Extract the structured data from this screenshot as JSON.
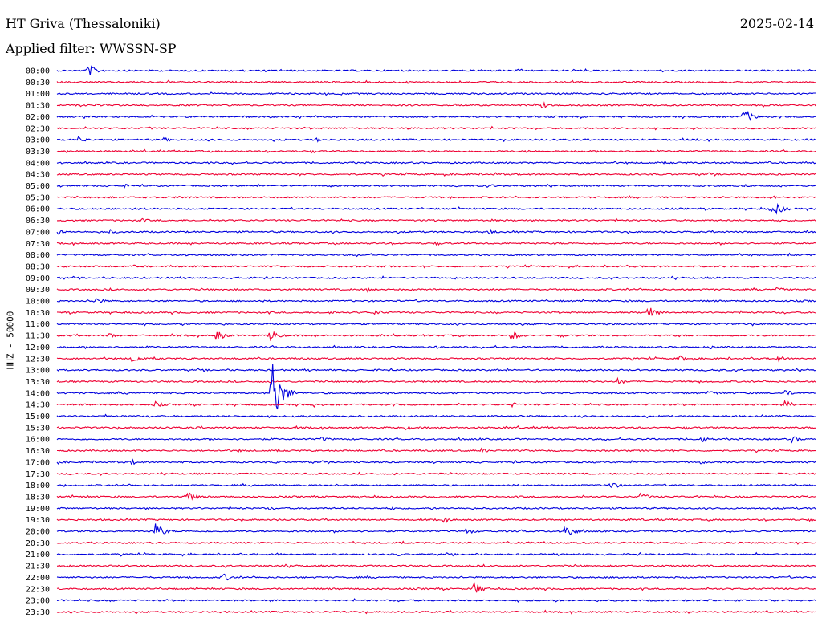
{
  "header": {
    "station": "HT Griva (Thessaloniki)",
    "date": "2025-02-14",
    "filter": "Applied filter: WWSSN-SP",
    "channel": "HHZ - 50000"
  },
  "colors": {
    "trace_a": "#0000dd",
    "trace_b": "#ee0033",
    "text": "#000000"
  },
  "chart_data": {
    "type": "helicorder",
    "title": "HT Griva (Thessaloniki)",
    "ylabel": "HHZ - 50000",
    "line_minutes": 30,
    "series": [
      {
        "time": "00:00",
        "events": [
          [
            0.04,
            9
          ]
        ]
      },
      {
        "time": "00:30",
        "events": []
      },
      {
        "time": "01:00",
        "events": []
      },
      {
        "time": "01:30",
        "events": [
          [
            0.64,
            4
          ]
        ]
      },
      {
        "time": "02:00",
        "events": [
          [
            0.905,
            10
          ]
        ]
      },
      {
        "time": "02:30",
        "events": [
          [
            0.12,
            2
          ]
        ]
      },
      {
        "time": "03:00",
        "events": [
          [
            0.03,
            4
          ],
          [
            0.14,
            3
          ],
          [
            0.34,
            3
          ]
        ]
      },
      {
        "time": "03:30",
        "events": [
          [
            0.62,
            2
          ]
        ]
      },
      {
        "time": "04:00",
        "events": [
          [
            0.2,
            1.5
          ]
        ]
      },
      {
        "time": "04:30",
        "events": [
          [
            0.58,
            2
          ],
          [
            0.86,
            2
          ]
        ]
      },
      {
        "time": "05:00",
        "events": [
          [
            0.09,
            2
          ],
          [
            0.57,
            2.5
          ]
        ]
      },
      {
        "time": "05:30",
        "events": [
          [
            0.16,
            2
          ],
          [
            0.94,
            3
          ]
        ]
      },
      {
        "time": "06:00",
        "events": [
          [
            0.1,
            2
          ],
          [
            0.94,
            4
          ],
          [
            0.95,
            6
          ]
        ]
      },
      {
        "time": "06:30",
        "events": [
          [
            0.11,
            3
          ],
          [
            0.57,
            2
          ]
        ]
      },
      {
        "time": "07:00",
        "events": [
          [
            0.0,
            4
          ],
          [
            0.07,
            3
          ],
          [
            0.57,
            3
          ]
        ]
      },
      {
        "time": "07:30",
        "events": [
          [
            0.5,
            2
          ]
        ]
      },
      {
        "time": "08:00",
        "events": []
      },
      {
        "time": "08:30",
        "events": [
          [
            0.1,
            2
          ]
        ]
      },
      {
        "time": "09:00",
        "events": [
          [
            0.24,
            2
          ]
        ]
      },
      {
        "time": "09:30",
        "events": [
          [
            0.41,
            3
          ],
          [
            0.95,
            3
          ]
        ]
      },
      {
        "time": "10:00",
        "events": [
          [
            0.05,
            5
          ]
        ]
      },
      {
        "time": "10:30",
        "events": [
          [
            0.36,
            3
          ],
          [
            0.42,
            4
          ],
          [
            0.78,
            8
          ]
        ]
      },
      {
        "time": "11:00",
        "events": []
      },
      {
        "time": "11:30",
        "events": [
          [
            0.07,
            3
          ],
          [
            0.21,
            7
          ],
          [
            0.28,
            8
          ],
          [
            0.6,
            6
          ]
        ]
      },
      {
        "time": "12:00",
        "events": [
          [
            0.5,
            2
          ],
          [
            0.86,
            3
          ]
        ]
      },
      {
        "time": "12:30",
        "events": [
          [
            0.1,
            5
          ],
          [
            0.82,
            4
          ],
          [
            0.95,
            4
          ]
        ]
      },
      {
        "time": "13:00",
        "events": [
          [
            0.58,
            2
          ],
          [
            0.87,
            2
          ]
        ]
      },
      {
        "time": "13:30",
        "events": [
          [
            0.74,
            4
          ]
        ]
      },
      {
        "time": "14:00",
        "events": [
          [
            0.283,
            45
          ],
          [
            0.86,
            4
          ],
          [
            0.96,
            4
          ]
        ]
      },
      {
        "time": "14:30",
        "events": [
          [
            0.13,
            4
          ],
          [
            0.34,
            3
          ],
          [
            0.6,
            3
          ],
          [
            0.96,
            5
          ]
        ]
      },
      {
        "time": "15:00",
        "events": [
          [
            0.31,
            3
          ]
        ]
      },
      {
        "time": "15:30",
        "events": [
          [
            0.18,
            2
          ],
          [
            0.46,
            3
          ]
        ]
      },
      {
        "time": "16:00",
        "events": [
          [
            0.35,
            3
          ],
          [
            0.85,
            4
          ],
          [
            0.97,
            4
          ]
        ]
      },
      {
        "time": "16:30",
        "events": [
          [
            0.24,
            2
          ],
          [
            0.56,
            3
          ]
        ]
      },
      {
        "time": "17:00",
        "events": [
          [
            0.1,
            3
          ],
          [
            0.29,
            2
          ],
          [
            0.85,
            2
          ]
        ]
      },
      {
        "time": "17:30",
        "events": [
          [
            0.95,
            2
          ]
        ]
      },
      {
        "time": "18:00",
        "events": [
          [
            0.73,
            5
          ]
        ]
      },
      {
        "time": "18:30",
        "events": [
          [
            0.17,
            8
          ],
          [
            0.77,
            5
          ]
        ]
      },
      {
        "time": "19:00",
        "events": [
          [
            0.28,
            2
          ],
          [
            0.44,
            2
          ]
        ]
      },
      {
        "time": "19:30",
        "events": [
          [
            0.51,
            4
          ]
        ]
      },
      {
        "time": "20:00",
        "events": [
          [
            0.13,
            10
          ],
          [
            0.54,
            4
          ],
          [
            0.67,
            10
          ]
        ]
      },
      {
        "time": "20:30",
        "events": [
          [
            0.62,
            3
          ]
        ]
      },
      {
        "time": "21:00",
        "events": [
          [
            0.29,
            2
          ],
          [
            0.45,
            2
          ]
        ]
      },
      {
        "time": "21:30",
        "events": []
      },
      {
        "time": "22:00",
        "events": [
          [
            0.22,
            5
          ],
          [
            0.74,
            2
          ]
        ]
      },
      {
        "time": "22:30",
        "events": [
          [
            0.55,
            8
          ]
        ]
      },
      {
        "time": "23:00",
        "events": [
          [
            0.86,
            2
          ]
        ]
      },
      {
        "time": "23:30",
        "events": []
      }
    ]
  }
}
